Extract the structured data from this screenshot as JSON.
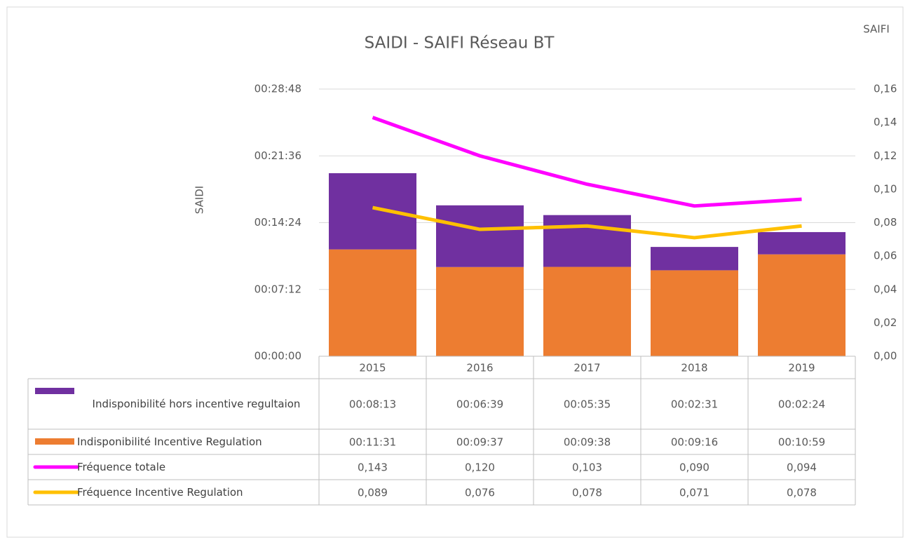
{
  "chart_data": {
    "type": "bar",
    "title": "SAIDI - SAIFI Réseau BT",
    "y_label": "SAIDI",
    "y2_label": "SAIFI",
    "categories": [
      "2015",
      "2016",
      "2017",
      "2018",
      "2019"
    ],
    "ylim": [
      0,
      1728
    ],
    "yticks": [
      {
        "value": 0,
        "label": "00:00:00"
      },
      {
        "value": 432,
        "label": "00:07:12"
      },
      {
        "value": 864,
        "label": "00:14:24"
      },
      {
        "value": 1296,
        "label": "00:21:36"
      },
      {
        "value": 1728,
        "label": "00:28:48"
      }
    ],
    "y2lim": [
      0,
      0.16
    ],
    "y2ticks": [
      {
        "value": 0,
        "label": "0,00"
      },
      {
        "value": 0.02,
        "label": "0,02"
      },
      {
        "value": 0.04,
        "label": "0,04"
      },
      {
        "value": 0.06,
        "label": "0,06"
      },
      {
        "value": 0.08,
        "label": "0,08"
      },
      {
        "value": 0.1,
        "label": "0,10"
      },
      {
        "value": 0.12,
        "label": "0,12"
      },
      {
        "value": 0.14,
        "label": "0,14"
      },
      {
        "value": 0.16,
        "label": "0,16"
      }
    ],
    "grid": true,
    "stacked": true,
    "series": [
      {
        "name": "Indisponibilité hors incentive regultaion",
        "type": "bar",
        "color": "#7030a0",
        "values": [
          493,
          399,
          335,
          151,
          144
        ],
        "value_labels": [
          "00:08:13",
          "00:06:39",
          "00:05:35",
          "00:02:31",
          "00:02:24"
        ]
      },
      {
        "name": "Indisponibilité Incentive Regulation",
        "type": "bar",
        "color": "#ed7d31",
        "values": [
          691,
          577,
          578,
          556,
          659
        ],
        "value_labels": [
          "00:11:31",
          "00:09:37",
          "00:09:38",
          "00:09:16",
          "00:10:59"
        ]
      },
      {
        "name": "Fréquence totale",
        "type": "line",
        "axis": "y2",
        "color": "#ff00ff",
        "values": [
          0.143,
          0.12,
          0.103,
          0.09,
          0.094
        ],
        "value_labels": [
          "0,143",
          "0,120",
          "0,103",
          "0,090",
          "0,094"
        ]
      },
      {
        "name": "Fréquence Incentive Regulation",
        "type": "line",
        "axis": "y2",
        "color": "#ffc000",
        "values": [
          0.089,
          0.076,
          0.078,
          0.071,
          0.078
        ],
        "value_labels": [
          "0,089",
          "0,076",
          "0,078",
          "0,071",
          "0,078"
        ]
      }
    ]
  }
}
